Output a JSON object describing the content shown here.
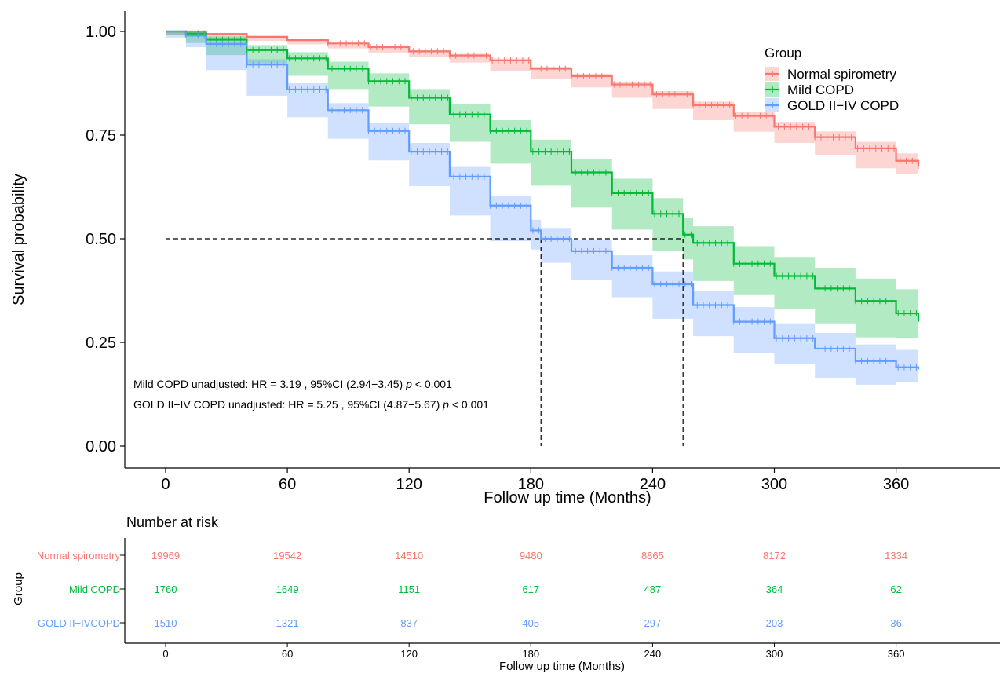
{
  "chart_data": {
    "type": "line",
    "subtype": "kaplan-meier",
    "xlabel": "Follow up time (Months)",
    "ylabel": "Survival probability",
    "x_ticks": [
      0,
      60,
      120,
      180,
      240,
      300,
      360
    ],
    "y_ticks": [
      "0.00",
      "0.25",
      "0.50",
      "0.75",
      "1.00"
    ],
    "y_tick_values": [
      0,
      0.25,
      0.5,
      0.75,
      1.0
    ],
    "xlim": [
      -20,
      410
    ],
    "ylim": [
      0,
      1.0
    ],
    "legend": {
      "title": "Group",
      "position": "top-right"
    },
    "series": [
      {
        "name": "Normal spirometry",
        "color": "#F8766D",
        "x": [
          0,
          20,
          40,
          60,
          80,
          100,
          120,
          140,
          160,
          180,
          200,
          220,
          240,
          260,
          280,
          300,
          320,
          340,
          360,
          371
        ],
        "y": [
          1.0,
          0.994,
          0.987,
          0.979,
          0.971,
          0.962,
          0.952,
          0.942,
          0.93,
          0.91,
          0.892,
          0.872,
          0.848,
          0.822,
          0.796,
          0.77,
          0.745,
          0.718,
          0.688,
          0.676
        ],
        "ci_lower": [
          1.0,
          0.992,
          0.985,
          0.977,
          0.969,
          0.959,
          0.949,
          0.938,
          0.925,
          0.905,
          0.886,
          0.865,
          0.84,
          0.813,
          0.786,
          0.758,
          0.731,
          0.702,
          0.67,
          0.656
        ],
        "ci_upper": [
          1.0,
          0.996,
          0.989,
          0.981,
          0.973,
          0.965,
          0.955,
          0.946,
          0.935,
          0.915,
          0.898,
          0.879,
          0.856,
          0.831,
          0.806,
          0.782,
          0.759,
          0.734,
          0.706,
          0.696
        ]
      },
      {
        "name": "Mild COPD",
        "color": "#00BA38",
        "x": [
          0,
          10,
          20,
          40,
          60,
          80,
          100,
          120,
          140,
          160,
          180,
          200,
          220,
          240,
          255,
          260,
          280,
          300,
          320,
          340,
          360,
          371
        ],
        "y": [
          1.0,
          0.995,
          0.98,
          0.955,
          0.935,
          0.91,
          0.88,
          0.84,
          0.8,
          0.76,
          0.71,
          0.66,
          0.61,
          0.56,
          0.51,
          0.49,
          0.44,
          0.41,
          0.38,
          0.35,
          0.32,
          0.3
        ],
        "ci_lower": [
          1.0,
          0.992,
          0.972,
          0.943,
          0.92,
          0.893,
          0.861,
          0.819,
          0.776,
          0.734,
          0.681,
          0.628,
          0.575,
          0.522,
          0.47,
          0.45,
          0.398,
          0.364,
          0.33,
          0.296,
          0.262,
          0.26
        ],
        "ci_upper": [
          1.0,
          0.998,
          0.988,
          0.967,
          0.95,
          0.927,
          0.899,
          0.861,
          0.824,
          0.786,
          0.739,
          0.692,
          0.645,
          0.598,
          0.55,
          0.53,
          0.482,
          0.456,
          0.43,
          0.404,
          0.378,
          0.34
        ]
      },
      {
        "name": "GOLD II−IV COPD",
        "color": "#619CFF",
        "x": [
          0,
          10,
          20,
          40,
          60,
          80,
          100,
          120,
          140,
          160,
          180,
          185,
          200,
          220,
          240,
          260,
          280,
          300,
          320,
          340,
          360,
          371
        ],
        "y": [
          1.0,
          0.99,
          0.97,
          0.92,
          0.86,
          0.81,
          0.76,
          0.71,
          0.65,
          0.58,
          0.52,
          0.5,
          0.47,
          0.43,
          0.39,
          0.34,
          0.3,
          0.26,
          0.235,
          0.205,
          0.19,
          0.185
        ],
        "ci_lower": [
          1.0,
          0.985,
          0.962,
          0.907,
          0.845,
          0.793,
          0.741,
          0.689,
          0.627,
          0.556,
          0.494,
          0.474,
          0.442,
          0.4,
          0.359,
          0.307,
          0.265,
          0.224,
          0.197,
          0.165,
          0.148,
          0.155
        ],
        "ci_upper": [
          1.0,
          0.995,
          0.978,
          0.933,
          0.875,
          0.827,
          0.779,
          0.731,
          0.673,
          0.604,
          0.546,
          0.526,
          0.498,
          0.46,
          0.421,
          0.373,
          0.335,
          0.296,
          0.273,
          0.245,
          0.232,
          0.215
        ]
      }
    ],
    "medians": [
      {
        "group": "GOLD II−IV COPD",
        "x": 185,
        "y": 0.5
      },
      {
        "group": "Mild COPD",
        "x": 255,
        "y": 0.5
      }
    ],
    "annotations": [
      {
        "prefix": "Mild COPD unadjusted: HR = 3.19 , 95%CI (2.94−3.45) ",
        "p": "p",
        "suffix": " < 0.001"
      },
      {
        "prefix": "GOLD II−IV COPD unadjusted: HR = 5.25 , 95%CI (4.87−5.67) ",
        "p": "p",
        "suffix": " < 0.001"
      }
    ],
    "risk_table": {
      "title": "Number at risk",
      "ylabel": "Group",
      "xlabel": "Follow up time (Months)",
      "times": [
        0,
        60,
        120,
        180,
        240,
        300,
        360
      ],
      "rows": [
        {
          "label": "Normal spirometry",
          "color": "#F8766D",
          "values": [
            "19969",
            "19542",
            "14510",
            "9480",
            "8865",
            "8172",
            "1334"
          ]
        },
        {
          "label": "Mild COPD",
          "color": "#00BA38",
          "values": [
            "1760",
            "1649",
            "1151",
            "617",
            "487",
            "364",
            "62"
          ]
        },
        {
          "label": "GOLD II−IVCOPD",
          "color": "#619CFF",
          "values": [
            "1510",
            "1321",
            "837",
            "405",
            "297",
            "203",
            "36"
          ]
        }
      ]
    }
  }
}
